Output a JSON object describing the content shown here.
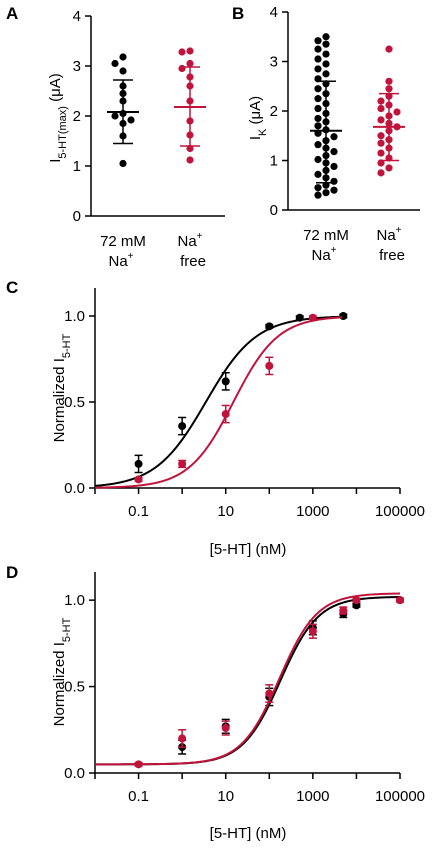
{
  "colors": {
    "black": "#000000",
    "red": "#c0143c"
  },
  "chart_data": [
    {
      "panel": "A",
      "type": "scatter",
      "ylabel_main": "I",
      "ylabel_sub": "5-HT(max)",
      "ylabel_unit": " (μA)",
      "ylim": [
        0,
        4
      ],
      "yticks": [
        "0",
        "1",
        "2",
        "3",
        "4"
      ],
      "categories": [
        {
          "line1": "72 mM",
          "line2": "Na",
          "sup": "+"
        },
        {
          "line1": "Na",
          "sup1": "+",
          "line2": "free"
        }
      ],
      "series": [
        {
          "color": "black",
          "mean": 2.08,
          "sd": [
            1.45,
            2.72
          ],
          "points": [
            3.18,
            3.05,
            2.9,
            2.6,
            2.45,
            2.3,
            2.05,
            2.0,
            1.92,
            1.85,
            1.6,
            1.05
          ]
        },
        {
          "color": "red",
          "mean": 2.18,
          "sd": [
            1.4,
            2.98
          ],
          "points": [
            3.3,
            3.28,
            3.05,
            2.95,
            2.78,
            2.6,
            2.3,
            1.9,
            1.62,
            1.35,
            1.12
          ]
        }
      ]
    },
    {
      "panel": "B",
      "type": "scatter",
      "ylabel_main": "I",
      "ylabel_sub": "K",
      "ylabel_unit": " (μA)",
      "ylim": [
        0,
        4
      ],
      "yticks": [
        "0",
        "1",
        "2",
        "3",
        "4"
      ],
      "categories": [
        {
          "line1": "72 mM",
          "line2": "Na",
          "sup": "+"
        },
        {
          "line1": "Na",
          "sup1": "+",
          "line2": "free"
        }
      ],
      "series": [
        {
          "color": "black",
          "mean": 1.6,
          "sd": [
            0.55,
            2.6
          ],
          "points": [
            3.5,
            3.42,
            3.35,
            3.25,
            3.15,
            3.05,
            2.95,
            2.85,
            2.75,
            2.65,
            2.55,
            2.45,
            2.35,
            2.25,
            2.15,
            2.05,
            1.95,
            1.85,
            1.78,
            1.7,
            1.62,
            1.55,
            1.48,
            1.4,
            1.32,
            1.25,
            1.18,
            1.1,
            1.02,
            0.95,
            0.88,
            0.8,
            0.72,
            0.65,
            0.58,
            0.5,
            0.45,
            0.4,
            0.35,
            0.3
          ]
        },
        {
          "color": "red",
          "mean": 1.68,
          "sd": [
            1.0,
            2.35
          ],
          "points": [
            3.25,
            2.6,
            2.45,
            2.3,
            2.2,
            2.12,
            2.05,
            1.98,
            1.9,
            1.82,
            1.75,
            1.68,
            1.6,
            1.5,
            1.42,
            1.35,
            1.25,
            1.15,
            1.05,
            0.95,
            0.85,
            0.75
          ]
        }
      ]
    },
    {
      "panel": "C",
      "type": "line",
      "ylabel_main": "Normalized I",
      "ylabel_sub": "5-HT",
      "xlabel": "[5-HT] (nM)",
      "xscale": "log",
      "xlim": [
        0.01,
        100000
      ],
      "ylim": [
        0,
        1.0
      ],
      "xticks": [
        "0.1",
        "10",
        "1000",
        "100000"
      ],
      "yticks": [
        "0.0",
        "0.5",
        "1.0"
      ],
      "series": [
        {
          "color": "black",
          "ec50": 3.5,
          "hill": 0.75,
          "x": [
            0.1,
            1,
            10,
            100,
            500,
            5000
          ],
          "y": [
            0.14,
            0.36,
            0.62,
            0.94,
            0.99,
            1.0
          ],
          "err": [
            0.05,
            0.05,
            0.05,
            0.01,
            0.01,
            0.01
          ]
        },
        {
          "color": "red",
          "ec50": 15,
          "hill": 0.85,
          "x": [
            0.1,
            1,
            10,
            100,
            1000
          ],
          "y": [
            0.05,
            0.14,
            0.43,
            0.71,
            0.99
          ],
          "err": [
            0.01,
            0.02,
            0.05,
            0.05,
            0.01
          ]
        }
      ]
    },
    {
      "panel": "D",
      "type": "line",
      "ylabel_main": "Normalized I",
      "ylabel_sub": "5-HT",
      "xlabel": "[5-HT] (nM)",
      "xscale": "log",
      "xlim": [
        0.01,
        100000
      ],
      "ylim": [
        0,
        1.0
      ],
      "xticks": [
        "0.1",
        "10",
        "1000",
        "100000"
      ],
      "yticks": [
        "0.0",
        "0.5",
        "1.0"
      ],
      "bottom": 0.05,
      "series": [
        {
          "color": "black",
          "ec50": 180,
          "hill": 1.0,
          "top": 1.02,
          "x": [
            1,
            10,
            100,
            1000,
            5000,
            10000,
            100000
          ],
          "y": [
            0.15,
            0.27,
            0.44,
            0.84,
            0.92,
            0.97,
            1.0
          ],
          "err": [
            0.04,
            0.04,
            0.05,
            0.04,
            0.02,
            0.01,
            0.01
          ]
        },
        {
          "color": "red",
          "ec50": 170,
          "hill": 1.0,
          "top": 1.04,
          "x": [
            0.1,
            1,
            10,
            100,
            1000,
            5000,
            10000,
            100000
          ],
          "y": [
            0.05,
            0.2,
            0.26,
            0.46,
            0.82,
            0.94,
            1.0,
            1.0
          ],
          "err": [
            0.01,
            0.05,
            0.04,
            0.05,
            0.04,
            0.02,
            0.01,
            0.01
          ]
        }
      ]
    }
  ]
}
